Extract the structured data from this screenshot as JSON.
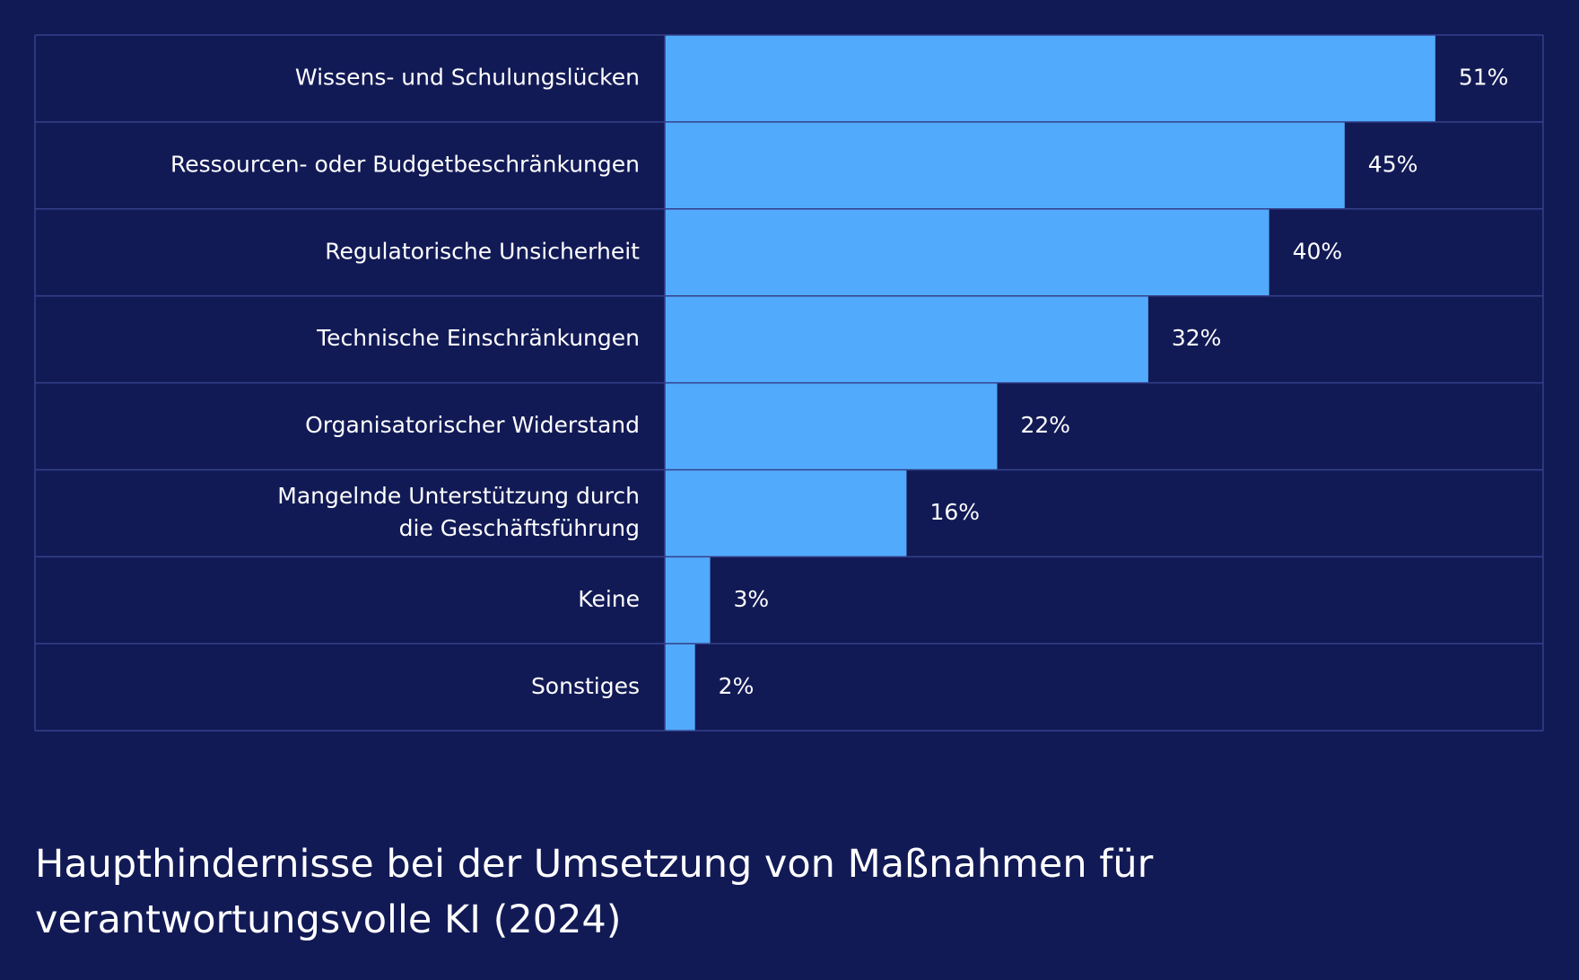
{
  "chart_data": {
    "type": "hbar",
    "title": "Haupthindernisse bei der Umsetzung von Maßnahmen für verantwortungsvolle KI (2024)",
    "categories": [
      "Wissens- und Schulungslücken",
      "Ressourcen- oder Budgetbeschränkungen",
      "Regulatorische Unsicherheit",
      "Technische Einschränkungen",
      "Organisatorischer Widerstand",
      "Mangelnde Unterstützung durch\ndie Geschäftsführung",
      "Keine",
      "Sonstiges"
    ],
    "values": [
      51,
      45,
      40,
      32,
      22,
      16,
      3,
      2
    ],
    "value_labels": [
      "51%",
      "45%",
      "40%",
      "32%",
      "22%",
      "16%",
      "3%",
      "2%"
    ],
    "color": "#52aafc"
  }
}
